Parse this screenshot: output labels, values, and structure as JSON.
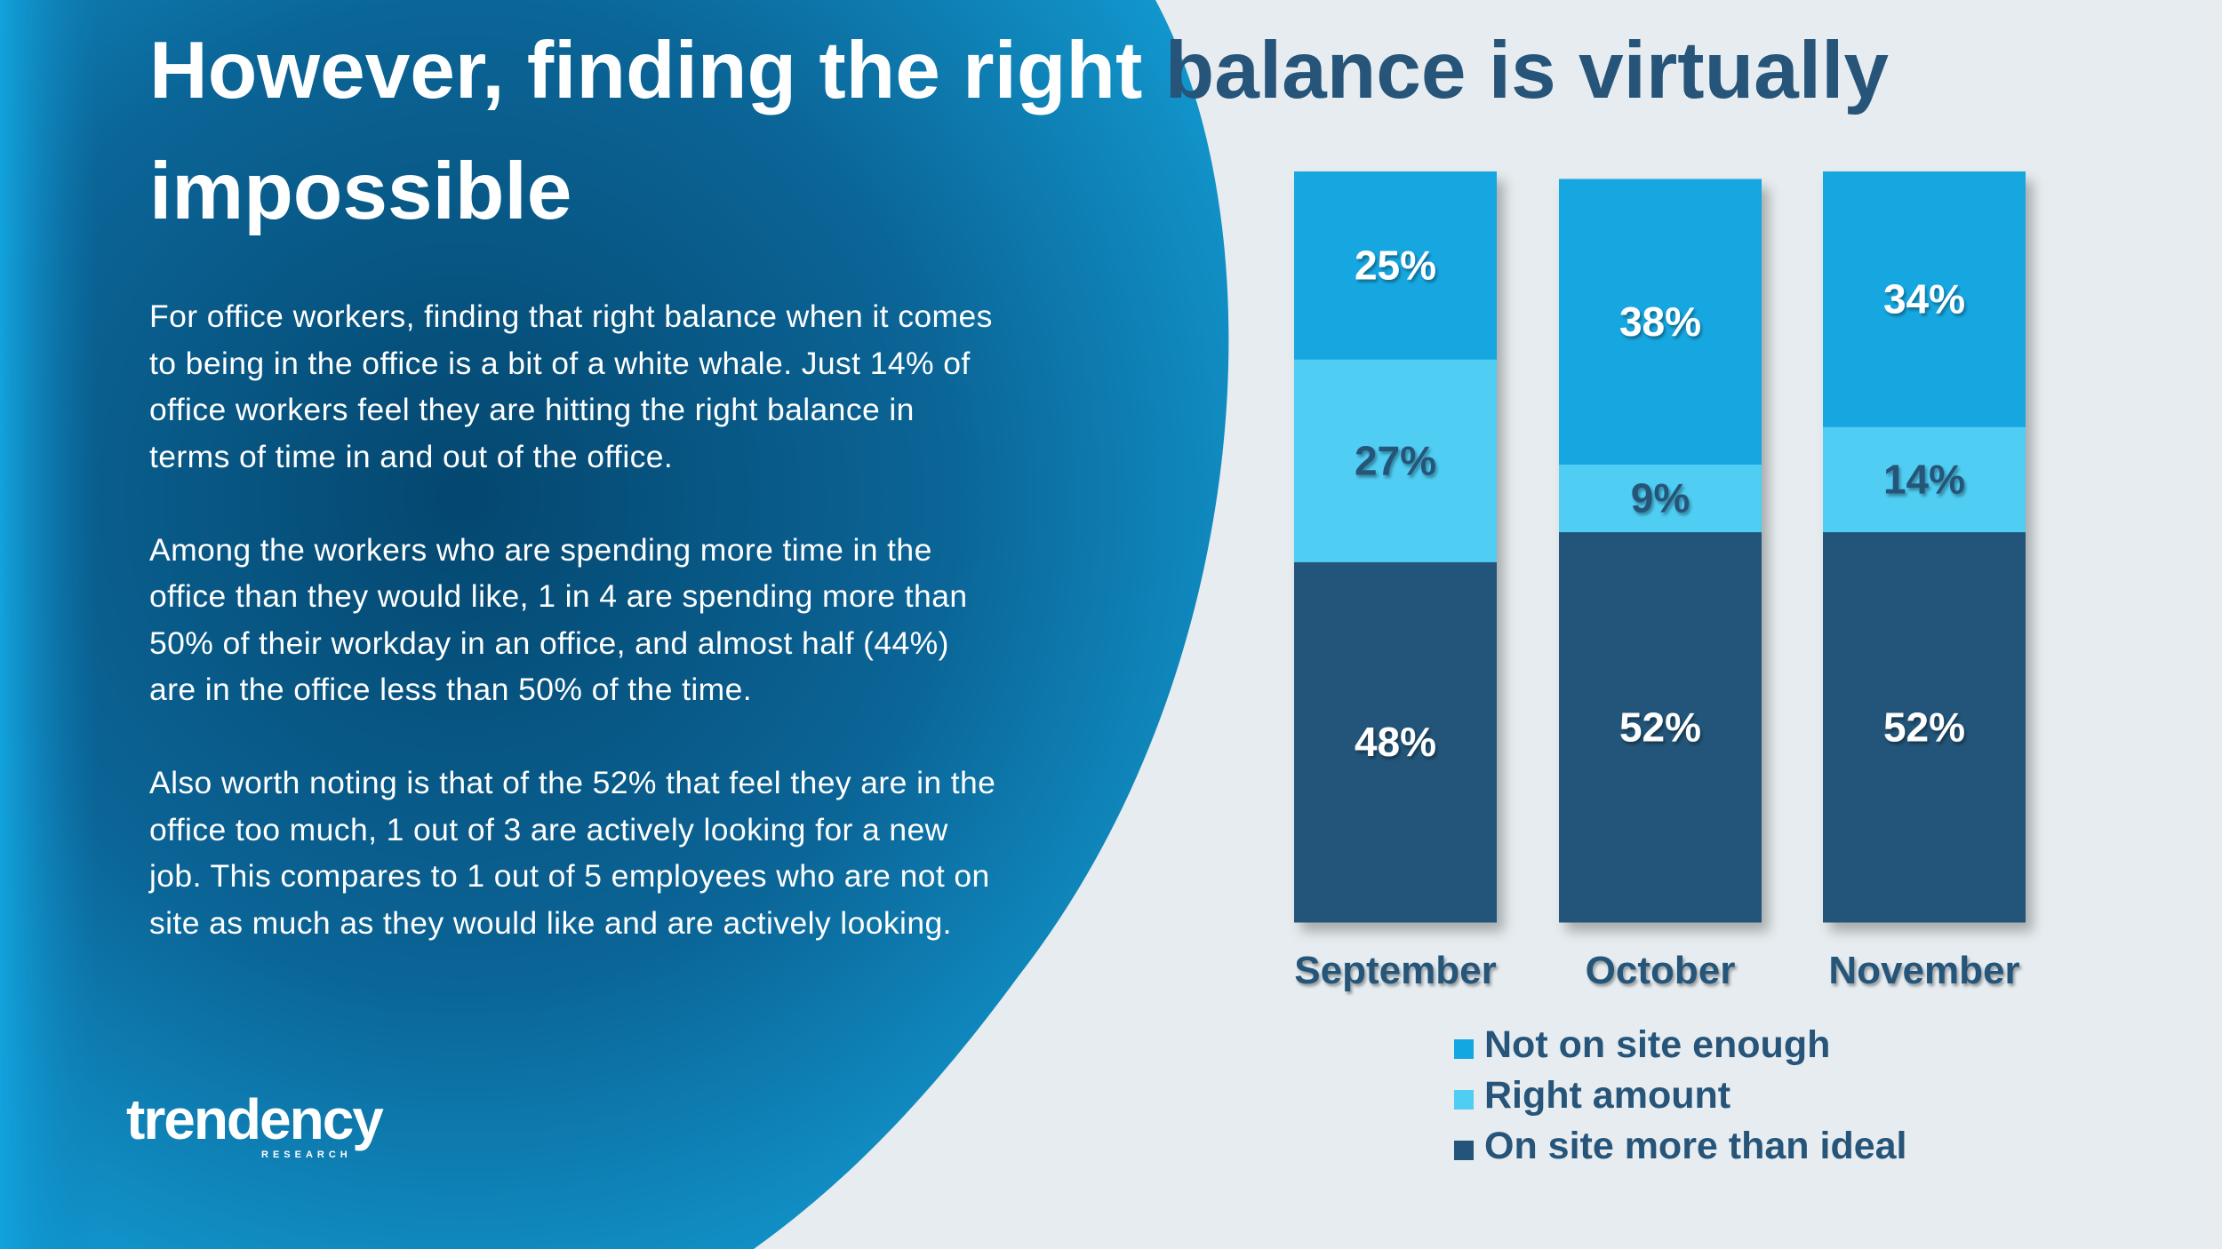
{
  "slide": {
    "title_part1": "However, finding the right ",
    "title_part2": "balance is virtually",
    "title_line2": "impossible",
    "paragraphs": [
      "For office workers, finding that right balance when it comes to being in the office is a bit of a white whale. Just 14% of office workers feel they are hitting the right balance in terms of time in and out of the office.",
      "Among the workers who are spending more time in the office than they would like, 1 in 4 are spending more than 50% of their workday in an office, and almost half (44%) are in the office less than 50% of the time.",
      "Also worth noting is that of the 52% that feel they are in the office too much, 1 out of 3 are actively looking for a new job. This compares to 1 out of 5 employees who are not on site as much as they would like and are actively looking."
    ],
    "logo_text": "trendency",
    "logo_subtext": "RESEARCH"
  },
  "colors": {
    "background": "#e6ecef",
    "panel_blue": "#0f73a8",
    "title_dark": "#27557a",
    "not_on_site": "#12a7e1",
    "right_amount": "#50cdf3",
    "on_site_more": "#245479"
  },
  "chart_data": {
    "type": "bar",
    "stacked": true,
    "categories": [
      "September",
      "October",
      "November"
    ],
    "series": [
      {
        "name": "On site more than ideal",
        "values": [
          48,
          52,
          52
        ],
        "labels": [
          "48%",
          "52%",
          "52%"
        ],
        "color": "#245479",
        "label_color": "#ffffff"
      },
      {
        "name": "Right amount",
        "values": [
          27,
          9,
          14
        ],
        "labels": [
          "27%",
          "9%",
          "14%"
        ],
        "color": "#50cdf3",
        "label_color": "#27557a"
      },
      {
        "name": "Not on site enough",
        "values": [
          25,
          38,
          34
        ],
        "labels": [
          "25%",
          "38%",
          "34%"
        ],
        "color": "#12a7e1",
        "label_color": "#ffffff"
      }
    ],
    "legend_order": [
      "Not on site enough",
      "Right amount",
      "On site more than ideal"
    ],
    "legend_position": "bottom",
    "ylim": [
      0,
      100
    ],
    "grid": false
  }
}
